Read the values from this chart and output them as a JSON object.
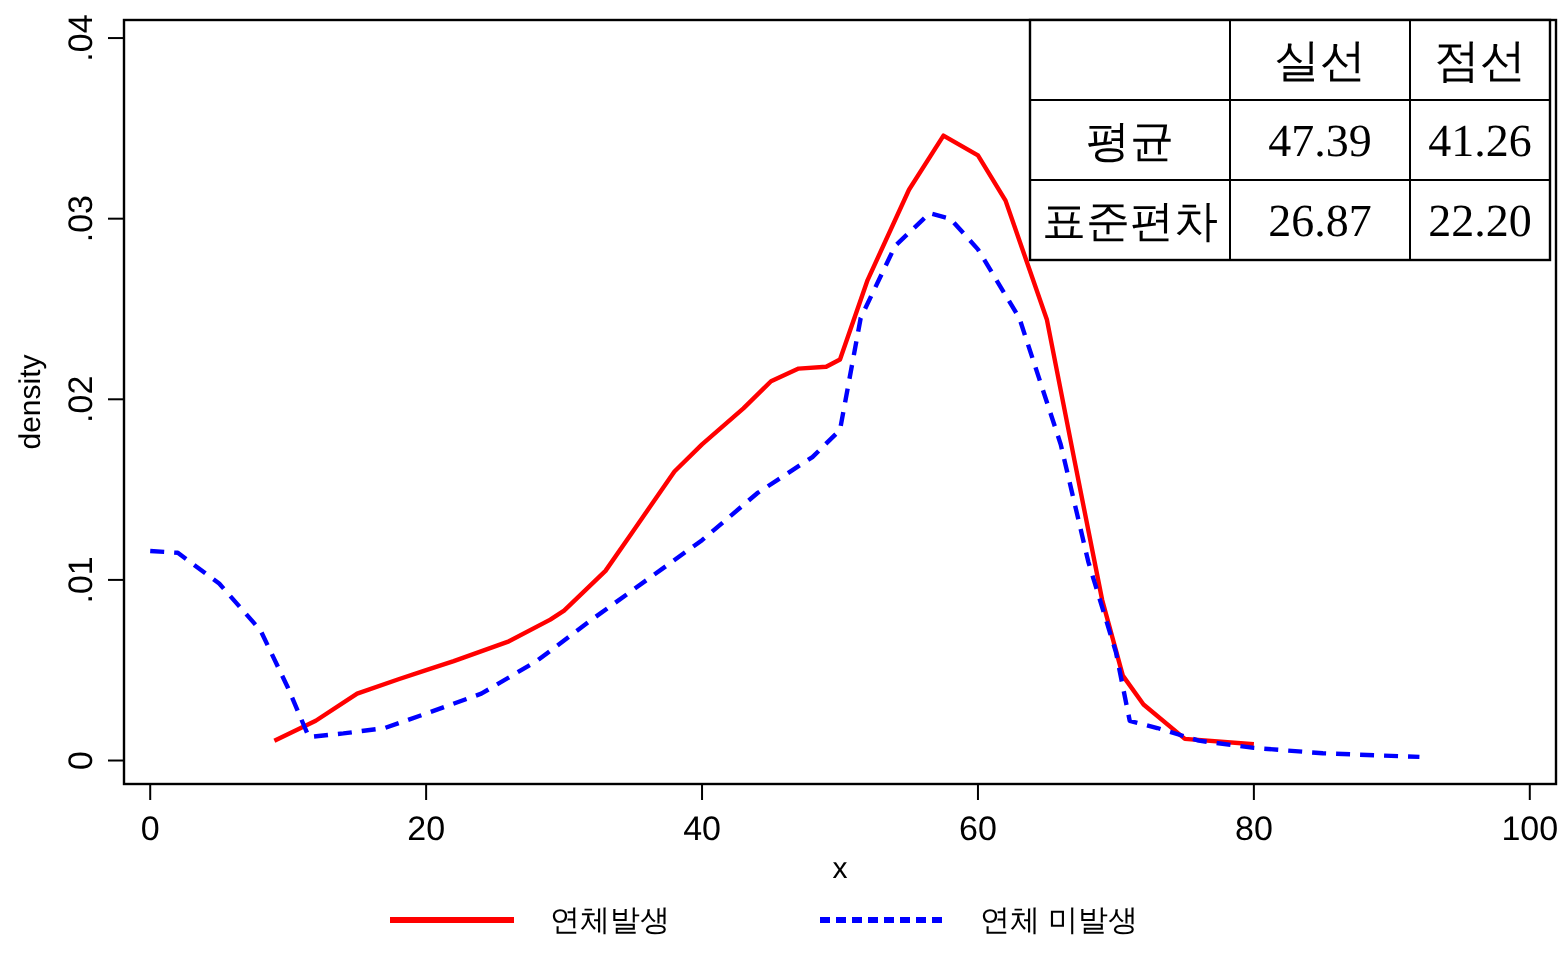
{
  "chart_data": {
    "type": "line",
    "xlabel": "x",
    "ylabel": "density",
    "xlim": [
      -1.9,
      101.9
    ],
    "xticks": [
      0,
      20,
      40,
      60,
      80,
      100
    ],
    "ylim": [
      -0.0013,
      0.041
    ],
    "yticks": [
      {
        "value": 0,
        "label": "0"
      },
      {
        "value": 0.01,
        "label": ".01"
      },
      {
        "value": 0.02,
        "label": ".02"
      },
      {
        "value": 0.03,
        "label": ".03"
      },
      {
        "value": 0.04,
        "label": ".04"
      }
    ],
    "grid": false,
    "legend": "bottom",
    "series": [
      {
        "name": "연체발생",
        "color": "#ff0000",
        "line_style": "solid",
        "x": [
          9,
          12,
          15,
          18,
          20,
          22,
          26,
          29,
          30,
          33,
          35,
          38,
          40,
          43,
          45,
          47,
          49,
          50,
          52,
          55,
          57.5,
          60,
          62,
          65,
          67,
          69,
          70.5,
          72,
          75,
          80
        ],
        "values": [
          0.0011,
          0.0022,
          0.0037,
          0.0045,
          0.005,
          0.0055,
          0.0066,
          0.0078,
          0.0083,
          0.0105,
          0.0127,
          0.016,
          0.0175,
          0.0195,
          0.021,
          0.0217,
          0.0218,
          0.0222,
          0.0266,
          0.0316,
          0.0346,
          0.0335,
          0.031,
          0.0244,
          0.0166,
          0.0089,
          0.0047,
          0.0031,
          0.0012,
          0.0009
        ]
      },
      {
        "name": "연체 미발생",
        "color": "#0000ff",
        "line_style": "dashed",
        "x": [
          0,
          2,
          5,
          8,
          10,
          11.5,
          14,
          17,
          20,
          24,
          28,
          32,
          36,
          40,
          44,
          48,
          50,
          51.5,
          54,
          56.5,
          58,
          60,
          63,
          66,
          68,
          70,
          71,
          73,
          76,
          80,
          85,
          92
        ],
        "values": [
          0.0116,
          0.0115,
          0.0098,
          0.0072,
          0.004,
          0.0013,
          0.0015,
          0.0018,
          0.0026,
          0.0037,
          0.0055,
          0.0078,
          0.01,
          0.0122,
          0.0148,
          0.0168,
          0.0183,
          0.0245,
          0.0285,
          0.0303,
          0.03,
          0.0283,
          0.0245,
          0.0175,
          0.011,
          0.006,
          0.0022,
          0.0018,
          0.0011,
          0.0007,
          0.0004,
          0.0002
        ]
      }
    ],
    "annotations": [
      "실선",
      "점선",
      "평균",
      "47.39",
      "41.26",
      "표준편차",
      "26.87",
      "22.20"
    ]
  }
}
